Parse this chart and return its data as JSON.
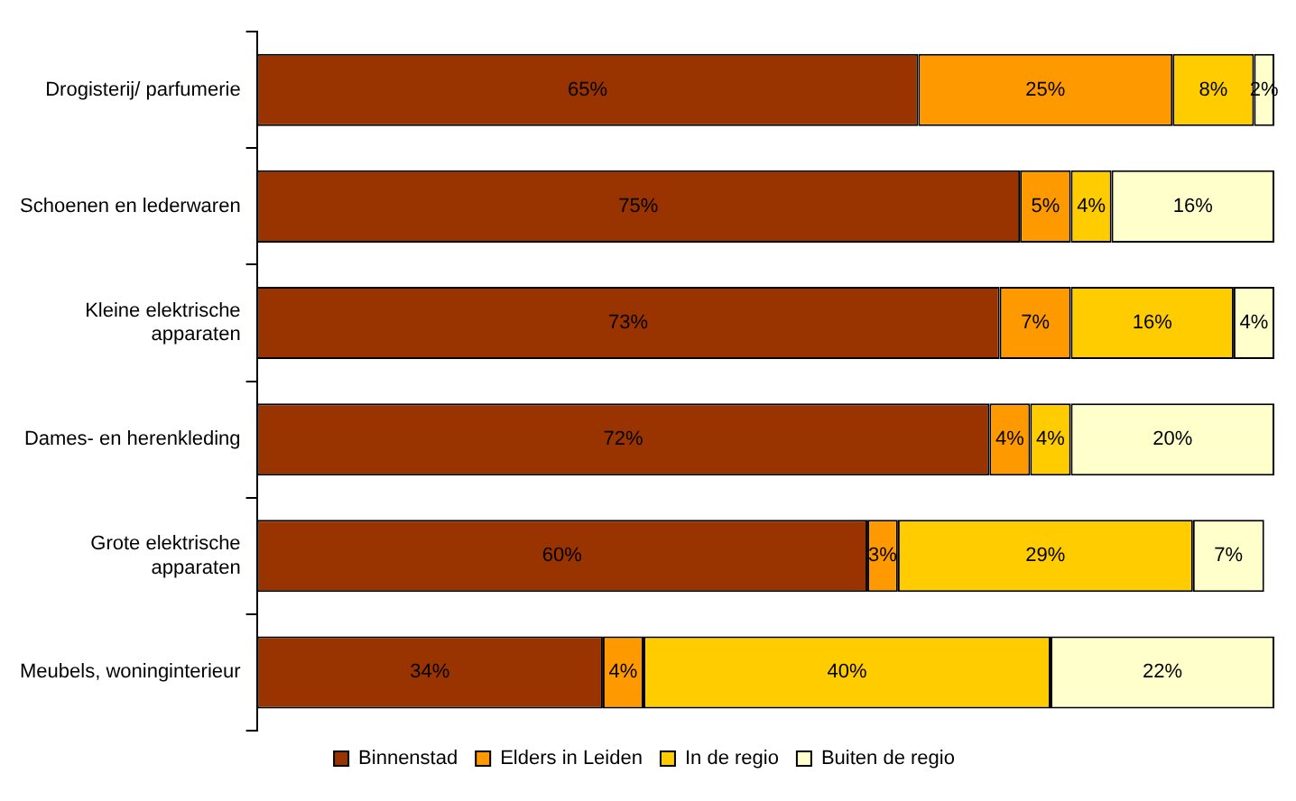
{
  "chart_data": {
    "type": "bar",
    "orientation": "horizontal",
    "stacked": true,
    "legend": "bottom",
    "categories": [
      "Drogisterij/ parfumerie",
      "Schoenen en lederwaren",
      "Kleine elektrische apparaten",
      "Dames- en herenkleding",
      "Grote elektrische apparaten",
      "Meubels, woninginterieur"
    ],
    "series": [
      {
        "name": "Binnenstad",
        "color": "#993300",
        "values": [
          65,
          75,
          73,
          72,
          60,
          34
        ],
        "value_labels": [
          "65%",
          "75%",
          "73%",
          "72%",
          "60%",
          "34%"
        ]
      },
      {
        "name": "Elders in Leiden",
        "color": "#ff9900",
        "values": [
          25,
          5,
          7,
          4,
          3,
          4
        ],
        "value_labels": [
          "25%",
          "5%",
          "7%",
          "4%",
          "3%",
          "4%"
        ]
      },
      {
        "name": "In de regio",
        "color": "#ffcc00",
        "values": [
          8,
          4,
          16,
          4,
          29,
          40
        ],
        "value_labels": [
          "8%",
          "4%",
          "16%",
          "4%",
          "29%",
          "40%"
        ]
      },
      {
        "name": "Buiten de regio",
        "color": "#ffffcc",
        "values": [
          2,
          16,
          4,
          20,
          7,
          22
        ],
        "value_labels": [
          "2%",
          "16%",
          "4%",
          "20%",
          "7%",
          "22%"
        ]
      }
    ]
  }
}
